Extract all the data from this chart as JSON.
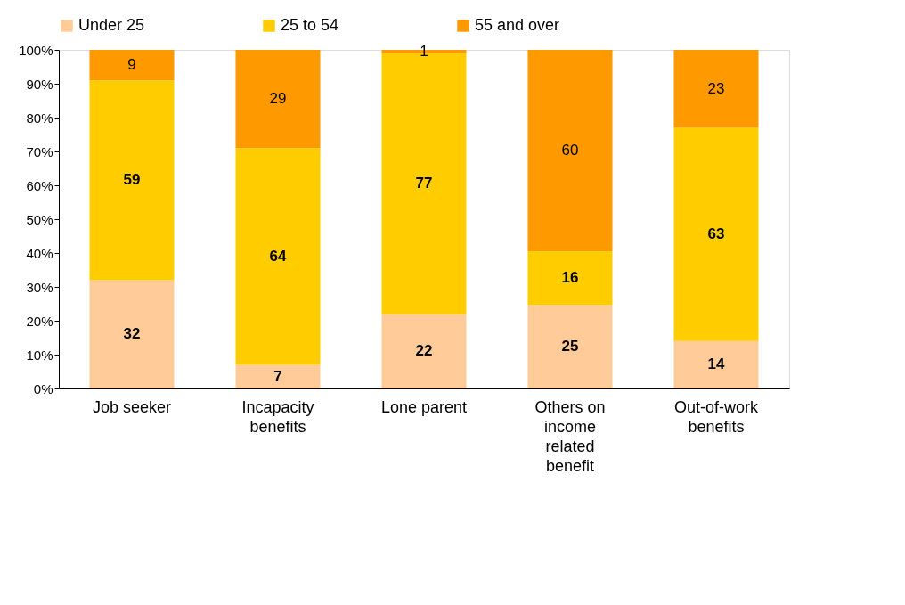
{
  "chart_data": {
    "type": "bar",
    "stacked": true,
    "categories": [
      "Job seeker",
      "Incapacity benefits",
      "Lone parent",
      "Others on income related benefit",
      "Out-of-work benefits"
    ],
    "series": [
      {
        "name": "Under 25",
        "color": "#ffcc99",
        "values": [
          32,
          7,
          22,
          24.7,
          14
        ],
        "value_labels": [
          "32",
          "7",
          "22",
          "25",
          "14"
        ]
      },
      {
        "name": "25 to 54",
        "color": "#ffcc00",
        "values": [
          59,
          64,
          77,
          15.8,
          63
        ],
        "value_labels": [
          "59",
          "64",
          "77",
          "16",
          "63"
        ]
      },
      {
        "name": "55 and over",
        "color": "#ff9900",
        "values": [
          9,
          29,
          1,
          59.5,
          23
        ],
        "value_labels": [
          "9",
          "29",
          "1",
          "60",
          "23"
        ]
      }
    ],
    "ylim": [
      0,
      100
    ],
    "yticks": [
      {
        "value": 0,
        "label": "0%"
      },
      {
        "value": 10,
        "label": "10%"
      },
      {
        "value": 20,
        "label": "20%"
      },
      {
        "value": 30,
        "label": "30%"
      },
      {
        "value": 40,
        "label": "40%"
      },
      {
        "value": 50,
        "label": "50%"
      },
      {
        "value": 60,
        "label": "60%"
      },
      {
        "value": 70,
        "label": "70%"
      },
      {
        "value": 80,
        "label": "80%"
      },
      {
        "value": 90,
        "label": "90%"
      },
      {
        "value": 100,
        "label": "100%"
      }
    ],
    "legend": "top",
    "grid": false
  }
}
